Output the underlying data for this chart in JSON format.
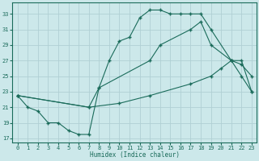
{
  "line1_x": [
    0,
    1,
    2,
    3,
    4,
    5,
    6,
    7,
    8,
    9,
    10,
    11,
    12,
    13,
    14,
    15,
    16,
    17,
    18,
    19,
    21,
    22,
    23
  ],
  "line1_y": [
    22.5,
    21,
    20.5,
    19,
    19,
    18,
    17.5,
    17.5,
    23.5,
    27,
    29.5,
    30,
    32.5,
    33.5,
    33.5,
    33,
    33,
    33,
    33,
    31,
    27,
    25,
    23
  ],
  "line2_x": [
    0,
    7,
    8,
    13,
    14,
    17,
    18,
    19,
    21,
    22,
    23
  ],
  "line2_y": [
    22.5,
    21,
    23.5,
    27,
    29,
    31,
    32,
    29,
    27,
    26.5,
    25
  ],
  "line3_x": [
    0,
    7,
    10,
    13,
    17,
    19,
    20,
    21,
    22,
    23
  ],
  "line3_y": [
    22.5,
    21,
    21.5,
    22.5,
    24,
    25,
    26,
    27,
    27,
    23
  ],
  "line_color": "#1a6b5a",
  "bg_color": "#cce8ea",
  "grid_color": "#b0d0d4",
  "xlabel": "Humidex (Indice chaleur)",
  "xlim": [
    -0.5,
    23.5
  ],
  "ylim": [
    16.5,
    34.5
  ],
  "yticks": [
    17,
    19,
    21,
    23,
    25,
    27,
    29,
    31,
    33
  ],
  "xticks": [
    0,
    1,
    2,
    3,
    4,
    5,
    6,
    7,
    8,
    9,
    10,
    11,
    12,
    13,
    14,
    15,
    16,
    17,
    18,
    19,
    20,
    21,
    22,
    23
  ]
}
